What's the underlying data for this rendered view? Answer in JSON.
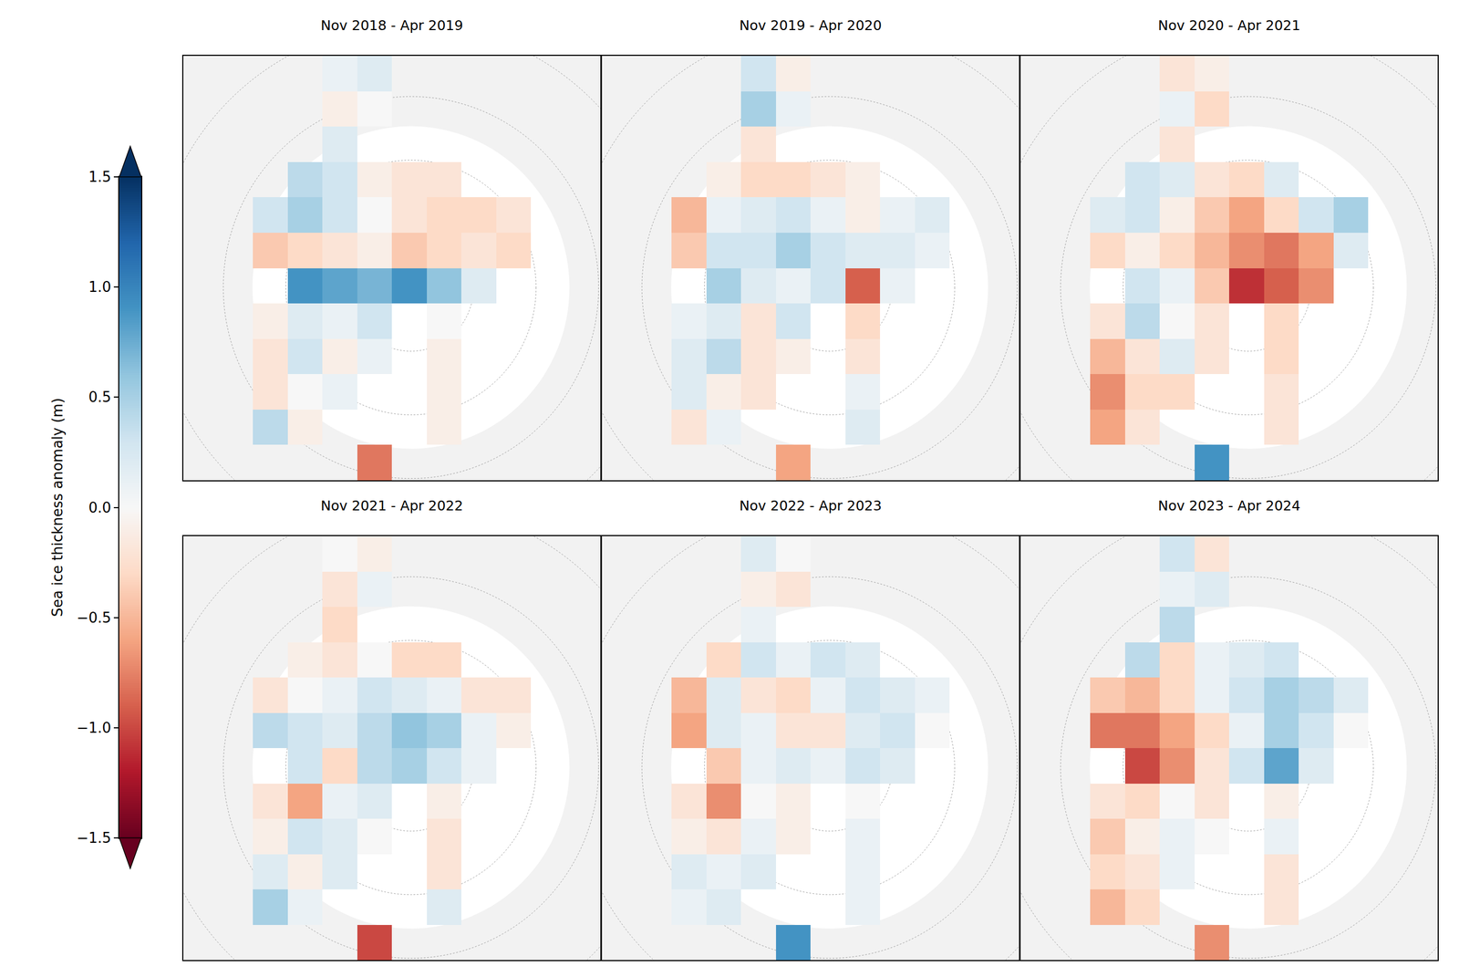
{
  "chart_data": {
    "type": "heatmap",
    "tick_labels": false,
    "panels": [
      {
        "title": "Nov 2018 - Apr 2019",
        "cells": [
          [
            null,
            null,
            null,
            null,
            0.1,
            0.2,
            null,
            null,
            null,
            null,
            null,
            null
          ],
          [
            null,
            null,
            null,
            null,
            -0.1,
            0.0,
            null,
            null,
            null,
            null,
            null,
            null
          ],
          [
            null,
            null,
            null,
            null,
            0.2,
            null,
            null,
            null,
            null,
            null,
            null,
            null
          ],
          [
            null,
            null,
            null,
            0.4,
            0.3,
            -0.1,
            -0.2,
            -0.2,
            null,
            null,
            null,
            null
          ],
          [
            null,
            null,
            0.3,
            0.5,
            0.3,
            0.0,
            -0.2,
            -0.3,
            -0.3,
            -0.2,
            null,
            null
          ],
          [
            null,
            null,
            -0.4,
            -0.3,
            -0.2,
            -0.1,
            -0.4,
            -0.3,
            -0.2,
            -0.3,
            null,
            null
          ],
          [
            null,
            null,
            null,
            0.9,
            0.8,
            0.7,
            0.9,
            0.6,
            0.2,
            null,
            null,
            null
          ],
          [
            null,
            null,
            -0.1,
            0.2,
            0.1,
            0.3,
            null,
            0.0,
            null,
            null,
            null,
            null
          ],
          [
            null,
            null,
            -0.2,
            0.3,
            -0.1,
            0.1,
            null,
            -0.1,
            null,
            null,
            null,
            null
          ],
          [
            null,
            null,
            -0.2,
            0.0,
            0.1,
            null,
            null,
            -0.1,
            null,
            null,
            null,
            null
          ],
          [
            null,
            null,
            0.4,
            -0.1,
            null,
            null,
            null,
            -0.1,
            null,
            null,
            null,
            null
          ],
          [
            null,
            null,
            null,
            null,
            null,
            -0.8,
            null,
            null,
            null,
            null,
            null,
            null
          ]
        ]
      },
      {
        "title": "Nov 2019 - Apr 2020",
        "cells": [
          [
            null,
            null,
            null,
            null,
            0.3,
            -0.1,
            null,
            null,
            null,
            null,
            null,
            null
          ],
          [
            null,
            null,
            null,
            null,
            0.5,
            0.1,
            null,
            null,
            null,
            null,
            null,
            null
          ],
          [
            null,
            null,
            null,
            null,
            -0.2,
            null,
            null,
            null,
            null,
            null,
            null,
            null
          ],
          [
            null,
            null,
            null,
            -0.1,
            -0.3,
            -0.3,
            -0.2,
            -0.1,
            null,
            null,
            null,
            null
          ],
          [
            null,
            null,
            -0.5,
            0.1,
            0.2,
            0.3,
            0.1,
            -0.1,
            0.1,
            0.2,
            null,
            null
          ],
          [
            null,
            null,
            -0.4,
            0.3,
            0.3,
            0.5,
            0.3,
            0.2,
            0.2,
            0.1,
            null,
            null
          ],
          [
            null,
            null,
            null,
            0.5,
            0.2,
            0.1,
            0.3,
            -0.9,
            0.1,
            null,
            null,
            null
          ],
          [
            null,
            null,
            0.1,
            0.2,
            -0.2,
            0.3,
            null,
            -0.3,
            null,
            null,
            null,
            null
          ],
          [
            null,
            null,
            0.2,
            0.4,
            -0.2,
            -0.1,
            null,
            -0.2,
            null,
            null,
            null,
            null
          ],
          [
            null,
            null,
            0.2,
            -0.1,
            -0.2,
            null,
            null,
            0.1,
            null,
            null,
            null,
            null
          ],
          [
            null,
            null,
            -0.2,
            0.1,
            null,
            null,
            null,
            0.2,
            null,
            null,
            null,
            null
          ],
          [
            null,
            null,
            null,
            null,
            null,
            -0.6,
            null,
            null,
            null,
            null,
            null,
            null
          ]
        ]
      },
      {
        "title": "Nov 2020 - Apr 2021",
        "cells": [
          [
            null,
            null,
            null,
            null,
            -0.2,
            -0.1,
            null,
            null,
            null,
            null,
            null,
            null
          ],
          [
            null,
            null,
            null,
            null,
            0.1,
            -0.3,
            null,
            null,
            null,
            null,
            null,
            null
          ],
          [
            null,
            null,
            null,
            null,
            -0.2,
            null,
            null,
            null,
            null,
            null,
            null,
            null
          ],
          [
            null,
            null,
            null,
            0.3,
            0.2,
            -0.2,
            -0.3,
            0.2,
            null,
            null,
            null,
            null
          ],
          [
            null,
            null,
            0.2,
            0.3,
            -0.1,
            -0.4,
            -0.6,
            -0.3,
            0.3,
            0.5,
            null,
            null
          ],
          [
            null,
            null,
            -0.3,
            -0.1,
            -0.3,
            -0.5,
            -0.7,
            -0.8,
            -0.6,
            0.2,
            null,
            null
          ],
          [
            null,
            null,
            null,
            0.3,
            0.1,
            -0.4,
            -1.1,
            -0.9,
            -0.7,
            null,
            null,
            null
          ],
          [
            null,
            null,
            -0.2,
            0.4,
            0.0,
            -0.2,
            null,
            -0.3,
            null,
            null,
            null,
            null
          ],
          [
            null,
            null,
            -0.5,
            -0.2,
            0.2,
            -0.2,
            null,
            -0.3,
            null,
            null,
            null,
            null
          ],
          [
            null,
            null,
            -0.7,
            -0.3,
            -0.3,
            null,
            null,
            -0.2,
            null,
            null,
            null,
            null
          ],
          [
            null,
            null,
            -0.6,
            -0.2,
            null,
            null,
            null,
            -0.2,
            null,
            null,
            null,
            null
          ],
          [
            null,
            null,
            null,
            null,
            null,
            0.9,
            null,
            null,
            null,
            null,
            null,
            null
          ]
        ]
      },
      {
        "title": "Nov 2021 - Apr 2022",
        "cells": [
          [
            null,
            null,
            null,
            null,
            0.0,
            -0.1,
            null,
            null,
            null,
            null,
            null,
            null
          ],
          [
            null,
            null,
            null,
            null,
            -0.2,
            0.1,
            null,
            null,
            null,
            null,
            null,
            null
          ],
          [
            null,
            null,
            null,
            null,
            -0.3,
            null,
            null,
            null,
            null,
            null,
            null,
            null
          ],
          [
            null,
            null,
            null,
            -0.1,
            -0.2,
            0.0,
            -0.3,
            -0.3,
            null,
            null,
            null,
            null
          ],
          [
            null,
            null,
            -0.2,
            0.0,
            0.1,
            0.3,
            0.2,
            0.1,
            -0.2,
            -0.2,
            null,
            null
          ],
          [
            null,
            null,
            0.4,
            0.3,
            0.2,
            0.4,
            0.6,
            0.5,
            0.1,
            -0.1,
            null,
            null
          ],
          [
            null,
            null,
            null,
            0.3,
            -0.3,
            0.4,
            0.5,
            0.3,
            0.1,
            null,
            null,
            null
          ],
          [
            null,
            null,
            -0.2,
            -0.6,
            0.1,
            0.2,
            null,
            -0.1,
            null,
            null,
            null,
            null
          ],
          [
            null,
            null,
            -0.1,
            0.3,
            0.2,
            0.0,
            null,
            -0.2,
            null,
            null,
            null,
            null
          ],
          [
            null,
            null,
            0.2,
            -0.1,
            0.2,
            null,
            null,
            -0.2,
            null,
            null,
            null,
            null
          ],
          [
            null,
            null,
            0.5,
            0.1,
            null,
            null,
            null,
            0.2,
            null,
            null,
            null,
            null
          ],
          [
            null,
            null,
            null,
            null,
            null,
            -1.0,
            null,
            null,
            null,
            null,
            null,
            null
          ]
        ]
      },
      {
        "title": "Nov 2022 - Apr 2023",
        "cells": [
          [
            null,
            null,
            null,
            null,
            0.2,
            0.0,
            null,
            null,
            null,
            null,
            null,
            null
          ],
          [
            null,
            null,
            null,
            null,
            -0.1,
            -0.2,
            null,
            null,
            null,
            null,
            null,
            null
          ],
          [
            null,
            null,
            null,
            null,
            0.1,
            null,
            null,
            null,
            null,
            null,
            null,
            null
          ],
          [
            null,
            null,
            null,
            -0.3,
            0.3,
            0.1,
            0.3,
            0.2,
            null,
            null,
            null,
            null
          ],
          [
            null,
            null,
            -0.5,
            0.2,
            -0.2,
            -0.3,
            0.1,
            0.3,
            0.2,
            0.1,
            null,
            null
          ],
          [
            null,
            null,
            -0.6,
            0.2,
            0.1,
            -0.2,
            -0.2,
            0.2,
            0.3,
            0.0,
            null,
            null
          ],
          [
            null,
            null,
            null,
            -0.4,
            0.1,
            0.2,
            0.1,
            0.3,
            0.2,
            null,
            null,
            null
          ],
          [
            null,
            null,
            -0.2,
            -0.7,
            0.0,
            -0.1,
            null,
            0.0,
            null,
            null,
            null,
            null
          ],
          [
            null,
            null,
            -0.1,
            -0.2,
            0.1,
            -0.1,
            null,
            0.1,
            null,
            null,
            null,
            null
          ],
          [
            null,
            null,
            0.2,
            0.1,
            0.2,
            null,
            null,
            0.1,
            null,
            null,
            null,
            null
          ],
          [
            null,
            null,
            0.1,
            0.2,
            null,
            null,
            null,
            0.1,
            null,
            null,
            null,
            null
          ],
          [
            null,
            null,
            null,
            null,
            null,
            0.9,
            null,
            null,
            null,
            null,
            null,
            null
          ]
        ]
      },
      {
        "title": "Nov 2023 - Apr 2024",
        "cells": [
          [
            null,
            null,
            null,
            null,
            0.3,
            -0.2,
            null,
            null,
            null,
            null,
            null,
            null
          ],
          [
            null,
            null,
            null,
            null,
            0.1,
            0.2,
            null,
            null,
            null,
            null,
            null,
            null
          ],
          [
            null,
            null,
            null,
            null,
            0.4,
            null,
            null,
            null,
            null,
            null,
            null,
            null
          ],
          [
            null,
            null,
            null,
            0.4,
            -0.3,
            0.1,
            0.2,
            0.3,
            null,
            null,
            null,
            null
          ],
          [
            null,
            null,
            -0.4,
            -0.5,
            -0.3,
            0.1,
            0.3,
            0.5,
            0.4,
            0.2,
            null,
            null
          ],
          [
            null,
            null,
            -0.8,
            -0.8,
            -0.6,
            -0.3,
            0.1,
            0.5,
            0.3,
            0.0,
            null,
            null
          ],
          [
            null,
            null,
            null,
            -1.0,
            -0.7,
            -0.2,
            0.3,
            0.8,
            0.2,
            null,
            null,
            null
          ],
          [
            null,
            null,
            -0.2,
            -0.3,
            0.0,
            -0.2,
            null,
            -0.1,
            null,
            null,
            null,
            null
          ],
          [
            null,
            null,
            -0.4,
            -0.1,
            0.1,
            0.0,
            null,
            0.1,
            null,
            null,
            null,
            null
          ],
          [
            null,
            null,
            -0.3,
            -0.2,
            0.1,
            null,
            null,
            -0.2,
            null,
            null,
            null,
            null
          ],
          [
            null,
            null,
            -0.5,
            -0.3,
            null,
            null,
            null,
            -0.2,
            null,
            null,
            null,
            null
          ],
          [
            null,
            null,
            null,
            null,
            null,
            -0.7,
            null,
            null,
            null,
            null,
            null,
            null
          ]
        ]
      }
    ],
    "colorbar": {
      "label": "Sea ice thickness anomaly (m)",
      "range": [
        -1.5,
        1.5
      ],
      "ticks": [
        {
          "value": -1.5,
          "label": "−1.5"
        },
        {
          "value": -1,
          "label": "−1.0"
        },
        {
          "value": -0.5,
          "label": "−0.5"
        },
        {
          "value": 0,
          "label": "0.0"
        },
        {
          "value": 0.5,
          "label": "0.5"
        },
        {
          "value": 1,
          "label": "1.0"
        },
        {
          "value": 1.5,
          "label": "1.5"
        }
      ]
    }
  }
}
